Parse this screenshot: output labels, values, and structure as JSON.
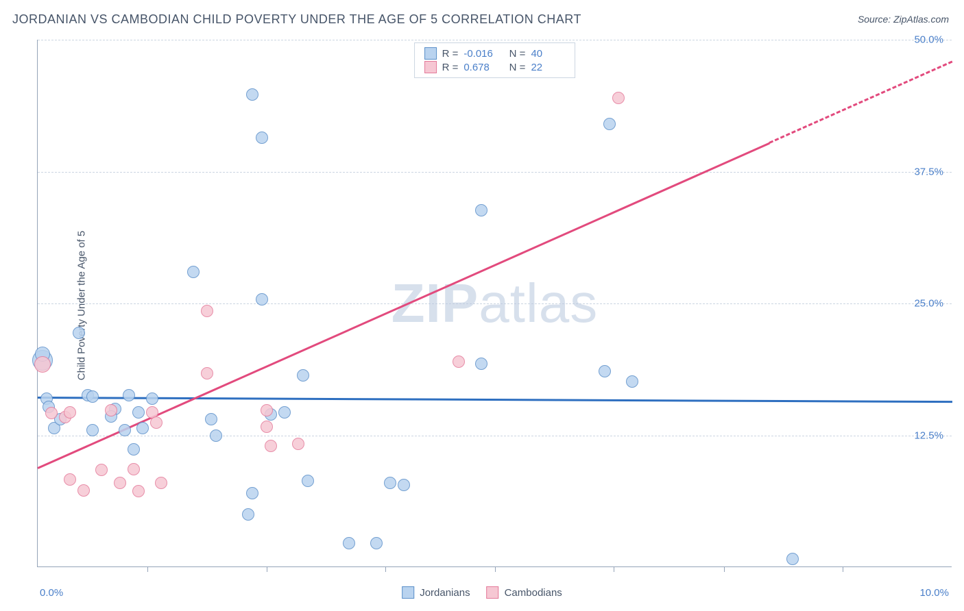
{
  "title": "JORDANIAN VS CAMBODIAN CHILD POVERTY UNDER THE AGE OF 5 CORRELATION CHART",
  "source": "Source: ZipAtlas.com",
  "ylabel": "Child Poverty Under the Age of 5",
  "watermark_bold": "ZIP",
  "watermark_rest": "atlas",
  "chart": {
    "type": "scatter",
    "background_color": "#ffffff",
    "grid_color": "#cbd5e1",
    "axis_color": "#94a3b8",
    "text_color": "#475569",
    "value_color": "#4a7fc9",
    "xlim": [
      0,
      10
    ],
    "ylim": [
      0,
      50
    ],
    "xtick_positions": [
      1.2,
      2.5,
      3.8,
      5.0,
      6.3,
      7.5,
      8.8
    ],
    "xaxis_labels": {
      "min": "0.0%",
      "max": "10.0%"
    },
    "ytick_labels": [
      {
        "value": 12.5,
        "label": "12.5%"
      },
      {
        "value": 25.0,
        "label": "25.0%"
      },
      {
        "value": 37.5,
        "label": "37.5%"
      },
      {
        "value": 50.0,
        "label": "50.0%"
      }
    ],
    "series": [
      {
        "name": "Jordanians",
        "fill": "#b9d3ef",
        "stroke": "#5b8fc9",
        "trend_color": "#2e6fc0",
        "R": "-0.016",
        "N": "40",
        "trend": {
          "x1": 0,
          "y1": 16.2,
          "x2": 10,
          "y2": 15.8,
          "dash_from_x": 10
        },
        "marker_radius": 9,
        "points": [
          {
            "x": 0.05,
            "y": 19.6,
            "r": 15
          },
          {
            "x": 0.05,
            "y": 20.2,
            "r": 11
          },
          {
            "x": 0.1,
            "y": 16.0
          },
          {
            "x": 0.12,
            "y": 15.2
          },
          {
            "x": 0.18,
            "y": 13.2
          },
          {
            "x": 0.45,
            "y": 22.2
          },
          {
            "x": 0.55,
            "y": 16.3
          },
          {
            "x": 0.6,
            "y": 16.2
          },
          {
            "x": 0.6,
            "y": 13.0
          },
          {
            "x": 0.85,
            "y": 15.0
          },
          {
            "x": 0.95,
            "y": 13.0
          },
          {
            "x": 1.0,
            "y": 16.3
          },
          {
            "x": 1.05,
            "y": 11.2
          },
          {
            "x": 1.1,
            "y": 14.7
          },
          {
            "x": 1.15,
            "y": 13.2
          },
          {
            "x": 1.7,
            "y": 28.0
          },
          {
            "x": 1.25,
            "y": 16.0
          },
          {
            "x": 1.9,
            "y": 14.0
          },
          {
            "x": 1.95,
            "y": 12.5
          },
          {
            "x": 2.3,
            "y": 5.0
          },
          {
            "x": 2.35,
            "y": 44.8
          },
          {
            "x": 2.45,
            "y": 40.7
          },
          {
            "x": 2.45,
            "y": 25.4
          },
          {
            "x": 2.35,
            "y": 7.0
          },
          {
            "x": 2.55,
            "y": 14.5
          },
          {
            "x": 2.7,
            "y": 14.7
          },
          {
            "x": 2.9,
            "y": 18.2
          },
          {
            "x": 2.95,
            "y": 8.2
          },
          {
            "x": 3.4,
            "y": 2.3
          },
          {
            "x": 3.7,
            "y": 2.3
          },
          {
            "x": 3.85,
            "y": 8.0
          },
          {
            "x": 4.0,
            "y": 7.8
          },
          {
            "x": 4.85,
            "y": 19.3
          },
          {
            "x": 4.85,
            "y": 33.8
          },
          {
            "x": 6.25,
            "y": 42.0
          },
          {
            "x": 6.2,
            "y": 18.6
          },
          {
            "x": 6.5,
            "y": 17.6
          },
          {
            "x": 8.25,
            "y": 0.8
          },
          {
            "x": 0.25,
            "y": 14.0
          },
          {
            "x": 0.8,
            "y": 14.3
          }
        ]
      },
      {
        "name": "Cambodians",
        "fill": "#f6c7d3",
        "stroke": "#e47a9a",
        "trend_color": "#e24a7d",
        "R": "0.678",
        "N": "22",
        "trend": {
          "x1": 0,
          "y1": 9.5,
          "x2": 10,
          "y2": 48.0,
          "dash_from_x": 8.0
        },
        "marker_radius": 9,
        "points": [
          {
            "x": 0.05,
            "y": 19.2,
            "r": 12
          },
          {
            "x": 0.15,
            "y": 14.6
          },
          {
            "x": 0.3,
            "y": 14.2
          },
          {
            "x": 0.35,
            "y": 14.7
          },
          {
            "x": 0.35,
            "y": 8.3
          },
          {
            "x": 0.5,
            "y": 7.3
          },
          {
            "x": 0.7,
            "y": 9.2
          },
          {
            "x": 0.8,
            "y": 14.9
          },
          {
            "x": 0.9,
            "y": 8.0
          },
          {
            "x": 1.05,
            "y": 9.3
          },
          {
            "x": 1.1,
            "y": 7.2
          },
          {
            "x": 1.25,
            "y": 14.7
          },
          {
            "x": 1.35,
            "y": 8.0
          },
          {
            "x": 1.3,
            "y": 13.7
          },
          {
            "x": 1.85,
            "y": 24.3
          },
          {
            "x": 1.85,
            "y": 18.4
          },
          {
            "x": 2.5,
            "y": 14.9
          },
          {
            "x": 2.5,
            "y": 13.3
          },
          {
            "x": 2.55,
            "y": 11.5
          },
          {
            "x": 2.85,
            "y": 11.7
          },
          {
            "x": 4.6,
            "y": 19.5
          },
          {
            "x": 6.35,
            "y": 44.5
          }
        ]
      }
    ],
    "legend": [
      {
        "label": "Jordanians",
        "fill": "#b9d3ef",
        "stroke": "#5b8fc9"
      },
      {
        "label": "Cambodians",
        "fill": "#f6c7d3",
        "stroke": "#e47a9a"
      }
    ]
  }
}
